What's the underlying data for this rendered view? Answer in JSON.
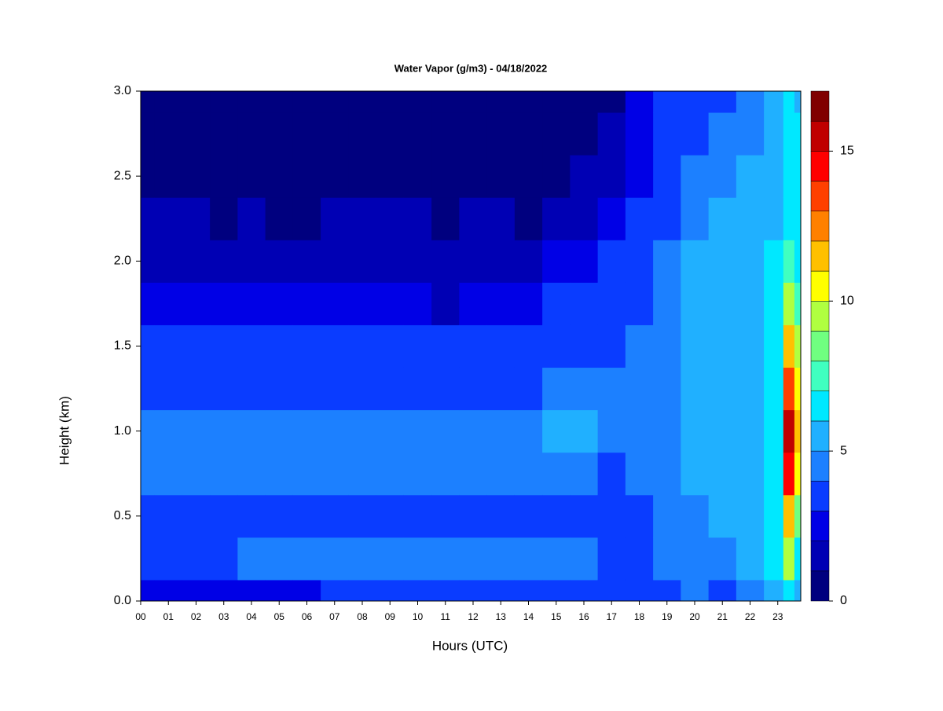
{
  "chart_data": {
    "type": "heatmap",
    "title": "Water Vapor (g/m3) - 04/18/2022",
    "xlabel": "Hours (UTC)",
    "ylabel": "Height (km)",
    "x": [
      0,
      1,
      2,
      3,
      4,
      5,
      6,
      7,
      8,
      9,
      10,
      11,
      12,
      13,
      14,
      15,
      16,
      17,
      18,
      19,
      20,
      21,
      22,
      23,
      23.4,
      23.8
    ],
    "y": [
      0,
      0.25,
      0.5,
      0.75,
      1,
      1.25,
      1.5,
      1.75,
      2,
      2.25,
      2.5,
      2.75,
      3
    ],
    "z": [
      [
        2.5,
        3.5,
        3.5,
        4.5,
        4.5,
        3.8,
        3.5,
        2.5,
        1.5,
        1.5,
        0.5,
        0.5,
        0.5
      ],
      [
        2.5,
        3.5,
        3.5,
        4.5,
        4.5,
        3.8,
        3.5,
        2.5,
        1.5,
        1.5,
        0.5,
        0.5,
        0.5
      ],
      [
        2.5,
        3.5,
        3.5,
        4.5,
        4.5,
        3.8,
        3.5,
        2.5,
        1.5,
        1.5,
        0.5,
        0.5,
        0.5
      ],
      [
        2.5,
        3.5,
        3.5,
        4.5,
        4.5,
        3.8,
        3.5,
        2.5,
        1.5,
        0.5,
        0.5,
        0.5,
        0.5
      ],
      [
        2.5,
        4.2,
        3.5,
        4.5,
        4.5,
        3.8,
        3.5,
        2.5,
        1.5,
        1.5,
        0.5,
        0.5,
        0.5
      ],
      [
        2.5,
        4.2,
        3.5,
        4.5,
        4.5,
        3.8,
        3.5,
        2.5,
        1.5,
        0.5,
        0.5,
        0.5,
        0.5
      ],
      [
        2.5,
        4.2,
        3.5,
        4.5,
        4.5,
        3.8,
        3.5,
        2.5,
        1.5,
        0.5,
        0.5,
        0.5,
        0.5
      ],
      [
        3.5,
        4.2,
        3.5,
        4.5,
        4.5,
        3.8,
        3.5,
        2.5,
        1.5,
        1.5,
        0.5,
        0.5,
        0.5
      ],
      [
        3.5,
        4.2,
        3.5,
        4.5,
        4.5,
        3.8,
        3.5,
        2.5,
        1.5,
        1.5,
        0.5,
        0.5,
        0.5
      ],
      [
        3.5,
        4.2,
        3.5,
        4.5,
        4.5,
        3.8,
        3.5,
        2.5,
        1.5,
        1.5,
        0.5,
        0.5,
        0.5
      ],
      [
        3.5,
        4.2,
        3.5,
        4.5,
        4.5,
        3.8,
        3.5,
        2.5,
        1.5,
        1.5,
        0.5,
        0.5,
        0.5
      ],
      [
        3.5,
        4.2,
        3.5,
        4.5,
        4.5,
        3.8,
        3.5,
        1.5,
        1.5,
        0.5,
        0.5,
        0.5,
        0.5
      ],
      [
        3.5,
        4.2,
        3.5,
        4.5,
        4.5,
        3.8,
        3.5,
        2.5,
        1.5,
        1.5,
        0.5,
        0.5,
        0.5
      ],
      [
        3.5,
        4.2,
        3.5,
        4.5,
        4.5,
        3.8,
        3.5,
        2.5,
        1.5,
        1.5,
        0.5,
        0.5,
        0.5
      ],
      [
        3.5,
        4.2,
        3.5,
        4.5,
        4.5,
        3.8,
        3.5,
        2.5,
        1.5,
        0.5,
        0.5,
        0.5,
        0.5
      ],
      [
        3.5,
        4.5,
        3.5,
        4.8,
        5.2,
        4.5,
        3.5,
        3.5,
        2.5,
        1.5,
        0.5,
        0.5,
        0.5
      ],
      [
        3.5,
        4.5,
        3.5,
        4.8,
        5.2,
        4.5,
        3.5,
        3.5,
        2.5,
        1.5,
        1.5,
        0.5,
        0.5
      ],
      [
        3.5,
        3.5,
        3.5,
        3.8,
        4.2,
        4.2,
        3.8,
        3.5,
        3.5,
        2.5,
        1.5,
        1.5,
        0.5
      ],
      [
        3.5,
        3.5,
        3.5,
        4.5,
        4.5,
        4.5,
        4.5,
        3.5,
        3.5,
        3.5,
        2.5,
        2.5,
        2.5
      ],
      [
        3.5,
        4.5,
        4.5,
        4.5,
        4.5,
        4.5,
        4.5,
        4.5,
        4.5,
        3.5,
        3.5,
        3.5,
        3.5
      ],
      [
        4.5,
        4.5,
        4.5,
        5.2,
        5.2,
        5.5,
        5.2,
        5.2,
        5.2,
        4.5,
        4.5,
        3.8,
        3.5
      ],
      [
        3.5,
        4.5,
        5.2,
        5.2,
        5.2,
        5.2,
        5.2,
        5.2,
        5.2,
        5.2,
        4.5,
        4.5,
        3.5
      ],
      [
        4.5,
        5.2,
        5.5,
        5.5,
        5.5,
        5.5,
        5.5,
        5.5,
        5.5,
        5.5,
        5.5,
        4.5,
        4.5
      ],
      [
        5.5,
        6.5,
        6.5,
        6.5,
        6.5,
        6.5,
        6.5,
        6.5,
        6.5,
        5.5,
        5.5,
        5.5,
        5.5
      ],
      [
        6.5,
        9,
        11,
        14,
        15,
        13,
        11,
        9,
        7,
        6.5,
        6.5,
        6.5,
        6.5
      ],
      [
        5.5,
        6.5,
        8,
        10,
        11,
        10,
        9,
        7.5,
        6.5,
        6,
        6,
        6,
        5.5
      ]
    ],
    "xlim": [
      0,
      23.83
    ],
    "ylim": [
      0,
      3
    ],
    "xticks": [
      {
        "value": 0,
        "label": "00"
      },
      {
        "value": 1,
        "label": "01"
      },
      {
        "value": 2,
        "label": "02"
      },
      {
        "value": 3,
        "label": "03"
      },
      {
        "value": 4,
        "label": "04"
      },
      {
        "value": 5,
        "label": "05"
      },
      {
        "value": 6,
        "label": "06"
      },
      {
        "value": 7,
        "label": "07"
      },
      {
        "value": 8,
        "label": "08"
      },
      {
        "value": 9,
        "label": "09"
      },
      10,
      11,
      12,
      13,
      14,
      15,
      16,
      17,
      18,
      19,
      20,
      21,
      22,
      23
    ],
    "yticks": [
      {
        "value": 0,
        "label": "0.0"
      },
      {
        "value": 0.5,
        "label": "0.5"
      },
      {
        "value": 1,
        "label": "1.0"
      },
      {
        "value": 1.5,
        "label": "1.5"
      },
      {
        "value": 2,
        "label": "2.0"
      },
      {
        "value": 2.5,
        "label": "2.5"
      },
      {
        "value": 3,
        "label": "3.0"
      }
    ],
    "levels": [
      0,
      1,
      2,
      3,
      4,
      5,
      6,
      7,
      8,
      9,
      10,
      11,
      12,
      13,
      14,
      15,
      16,
      17
    ],
    "colors": [
      "#00007f",
      "#0000b4",
      "#0000e6",
      "#0a3cff",
      "#1c80ff",
      "#20b0ff",
      "#00e8ff",
      "#40ffc0",
      "#70ff80",
      "#b0ff40",
      "#ffff00",
      "#ffc000",
      "#ff8000",
      "#ff4000",
      "#ff0000",
      "#c00000",
      "#800000"
    ],
    "colorbar_ticks": [
      0,
      5,
      10,
      15
    ]
  }
}
